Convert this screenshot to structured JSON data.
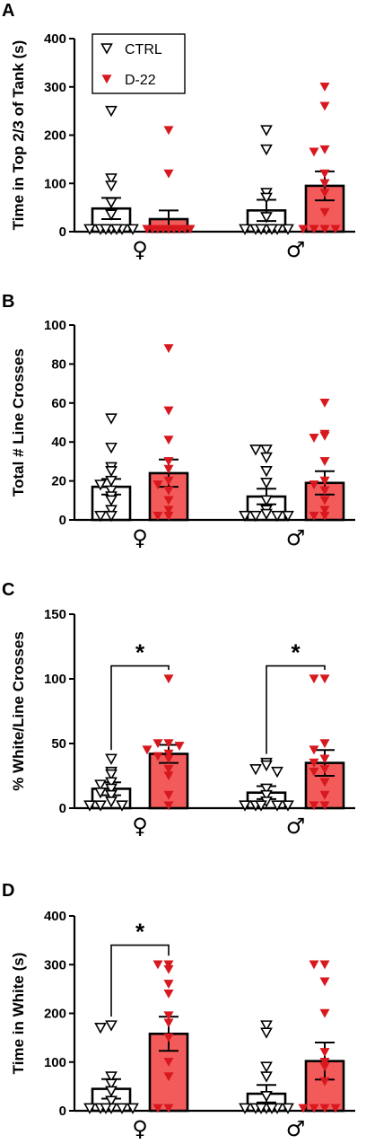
{
  "colors": {
    "ctrl_bar": "#ffffff",
    "d22_bar": "#f35b5b",
    "d22_marker": "#d8181f",
    "axis": "#000000"
  },
  "legend": {
    "entries": [
      "CTRL",
      "D-22"
    ]
  },
  "chart_data": [
    {
      "type": "bar",
      "panel": "A",
      "ylabel": "Time in Top 2/3 of Tank (s)",
      "ylim": [
        0,
        400
      ],
      "yticks": [
        "0",
        "100",
        "200",
        "300",
        "400"
      ],
      "categories": [
        "♀",
        "♂"
      ],
      "legend_position": "top-left",
      "series": [
        {
          "name": "CTRL",
          "values": [
            48,
            44
          ],
          "sem": [
            22,
            22
          ],
          "points": [
            [
              250,
              110,
              95,
              60,
              35,
              5,
              5,
              5,
              5,
              5,
              5,
              5
            ],
            [
              210,
              170,
              80,
              70,
              30,
              5,
              5,
              5,
              5,
              5,
              5,
              5
            ]
          ]
        },
        {
          "name": "D-22",
          "values": [
            26,
            95
          ],
          "sem": [
            18,
            30
          ],
          "points": [
            [
              210,
              120,
              5,
              5,
              5,
              5,
              5,
              5,
              5,
              5,
              5,
              5
            ],
            [
              300,
              260,
              170,
              165,
              120,
              100,
              80,
              40,
              5,
              5,
              5,
              5
            ]
          ]
        }
      ],
      "significance": []
    },
    {
      "type": "bar",
      "panel": "B",
      "ylabel": "Total # Line Crosses",
      "ylim": [
        0,
        100
      ],
      "yticks": [
        "0",
        "20",
        "40",
        "60",
        "80",
        "100"
      ],
      "categories": [
        "♀",
        "♂"
      ],
      "series": [
        {
          "name": "CTRL",
          "values": [
            17,
            12
          ],
          "sem": [
            4,
            4
          ],
          "points": [
            [
              52,
              37,
              27,
              25,
              20,
              18,
              15,
              12,
              10,
              5,
              2,
              2
            ],
            [
              36,
              36,
              32,
              25,
              19,
              10,
              5,
              3,
              2,
              2,
              2,
              2
            ]
          ]
        },
        {
          "name": "D-22",
          "values": [
            24,
            19
          ],
          "sem": [
            7,
            6
          ],
          "points": [
            [
              88,
              56,
              41,
              30,
              26,
              20,
              18,
              15,
              10,
              5,
              2,
              2
            ],
            [
              60,
              44,
              43,
              42,
              30,
              20,
              18,
              15,
              10,
              5,
              2,
              2
            ]
          ]
        }
      ],
      "significance": []
    },
    {
      "type": "bar",
      "panel": "C",
      "ylabel": "% White/Line Crosses",
      "ylim": [
        0,
        150
      ],
      "yticks": [
        "0",
        "50",
        "100",
        "150"
      ],
      "categories": [
        "♀",
        "♂"
      ],
      "series": [
        {
          "name": "CTRL",
          "values": [
            15,
            12
          ],
          "sem": [
            5,
            5
          ],
          "points": [
            [
              38,
              28,
              26,
              20,
              18,
              15,
              12,
              10,
              5,
              2,
              2,
              2
            ],
            [
              35,
              33,
              30,
              28,
              15,
              10,
              5,
              2,
              2,
              2,
              2,
              2
            ]
          ]
        },
        {
          "name": "D-22",
          "values": [
            42,
            35
          ],
          "sem": [
            7,
            10
          ],
          "points": [
            [
              100,
              50,
              50,
              48,
              45,
              42,
              40,
              38,
              30,
              25,
              10,
              2
            ],
            [
              100,
              100,
              50,
              45,
              38,
              35,
              30,
              28,
              20,
              10,
              2,
              2
            ]
          ]
        }
      ],
      "significance": [
        {
          "group": 0,
          "label": "*",
          "y": 110
        },
        {
          "group": 1,
          "label": "*",
          "y": 110
        }
      ]
    },
    {
      "type": "bar",
      "panel": "D",
      "ylabel": "Time in White (s)",
      "ylim": [
        0,
        400
      ],
      "yticks": [
        "0",
        "100",
        "200",
        "300",
        "400"
      ],
      "categories": [
        "♀",
        "♂"
      ],
      "series": [
        {
          "name": "CTRL",
          "values": [
            45,
            35
          ],
          "sem": [
            20,
            18
          ],
          "points": [
            [
              175,
              170,
              70,
              55,
              40,
              20,
              5,
              5,
              5,
              5,
              5,
              5
            ],
            [
              175,
              160,
              90,
              70,
              30,
              5,
              5,
              5,
              5,
              5,
              5,
              5
            ]
          ]
        },
        {
          "name": "D-22",
          "values": [
            158,
            102
          ],
          "sem": [
            35,
            38
          ],
          "points": [
            [
              300,
              300,
              290,
              260,
              240,
              195,
              180,
              150,
              100,
              70,
              5,
              5
            ],
            [
              300,
              300,
              265,
              200,
              120,
              100,
              90,
              60,
              5,
              5,
              5,
              5
            ]
          ]
        }
      ],
      "significance": [
        {
          "group": 0,
          "label": "*",
          "y": 340
        }
      ]
    }
  ]
}
